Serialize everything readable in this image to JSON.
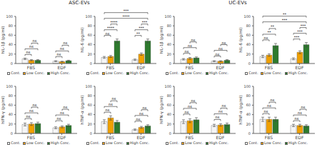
{
  "chart_data": [
    {
      "type": "bar",
      "title": "ASC-EVs",
      "ylabel": "hIL-1β (pg/ml)",
      "categories": [
        "FBS",
        "EDF"
      ],
      "ylim": [
        0,
        100
      ],
      "yticks": [
        0,
        20,
        40,
        60,
        80,
        100
      ],
      "legend": "bottom",
      "series": [
        {
          "name": "Cont.",
          "color": "#f5f5f5",
          "values": [
            10,
            5
          ],
          "errors": [
            1.5,
            1.0
          ]
        },
        {
          "name": "Low Conc.",
          "color": "#f0a000",
          "values": [
            7,
            4
          ],
          "errors": [
            1.2,
            0.8
          ]
        },
        {
          "name": "High Conc.",
          "color": "#2d7a2d",
          "values": [
            7,
            6
          ],
          "errors": [
            1.2,
            1.0
          ]
        }
      ],
      "annotations": [
        {
          "text": "ns",
          "from": [
            "FBS",
            "Cont."
          ],
          "to": [
            "FBS",
            "Low Conc."
          ],
          "level": 0
        },
        {
          "text": "ns",
          "from": [
            "FBS",
            "Cont."
          ],
          "to": [
            "FBS",
            "High Conc."
          ],
          "level": 1
        },
        {
          "text": "ns",
          "from": [
            "FBS",
            "Low Conc."
          ],
          "to": [
            "FBS",
            "High Conc."
          ],
          "level": 2
        },
        {
          "text": "ns",
          "from": [
            "EDF",
            "Cont."
          ],
          "to": [
            "EDF",
            "Low Conc."
          ],
          "level": 0
        },
        {
          "text": "ns",
          "from": [
            "EDF",
            "Cont."
          ],
          "to": [
            "EDF",
            "High Conc."
          ],
          "level": 1
        },
        {
          "text": "ns",
          "from": [
            "EDF",
            "Low Conc."
          ],
          "to": [
            "EDF",
            "High Conc."
          ],
          "level": 2
        }
      ]
    },
    {
      "type": "bar",
      "ylabel": "hIL-6 (pg/ml)",
      "categories": [
        "FBS",
        "EDF"
      ],
      "ylim": [
        0,
        100
      ],
      "yticks": [
        0,
        20,
        40,
        60,
        80,
        100
      ],
      "legend": "bottom",
      "series": [
        {
          "name": "Cont.",
          "color": "#f5f5f5",
          "values": [
            13,
            8
          ],
          "errors": [
            2.0,
            1.5
          ]
        },
        {
          "name": "Low Conc.",
          "color": "#f0a000",
          "values": [
            15,
            20
          ],
          "errors": [
            2.0,
            2.5
          ]
        },
        {
          "name": "High Conc.",
          "color": "#2d7a2d",
          "values": [
            48,
            48
          ],
          "errors": [
            4.0,
            4.0
          ]
        }
      ],
      "annotations": [
        {
          "text": "ns",
          "from": [
            "FBS",
            "Cont."
          ],
          "to": [
            "FBS",
            "Low Conc."
          ],
          "level": 0
        },
        {
          "text": "****",
          "from": [
            "FBS",
            "Cont."
          ],
          "to": [
            "FBS",
            "High Conc."
          ],
          "level": 1
        },
        {
          "text": "****",
          "from": [
            "FBS",
            "Low Conc."
          ],
          "to": [
            "FBS",
            "High Conc."
          ],
          "level": 2
        },
        {
          "text": "**",
          "from": [
            "EDF",
            "Cont."
          ],
          "to": [
            "EDF",
            "Low Conc."
          ],
          "level": 0
        },
        {
          "text": "***",
          "from": [
            "EDF",
            "Cont."
          ],
          "to": [
            "EDF",
            "High Conc."
          ],
          "level": 1
        },
        {
          "text": "***",
          "from": [
            "EDF",
            "Low Conc."
          ],
          "to": [
            "EDF",
            "High Conc."
          ],
          "level": 2
        },
        {
          "text": "****",
          "from": [
            "FBS",
            "Cont."
          ],
          "to": [
            "EDF",
            "High Conc."
          ],
          "level": 0
        },
        {
          "text": "***",
          "from": [
            "FBS",
            "Cont."
          ],
          "to": [
            "EDF",
            "High Conc."
          ],
          "level": 1
        }
      ]
    },
    {
      "type": "bar",
      "ylabel": "hIFN-γ (pg/ml)",
      "categories": [
        "FBS",
        "EDF"
      ],
      "ylim": [
        0,
        100
      ],
      "yticks": [
        0,
        20,
        40,
        60,
        80,
        100
      ],
      "legend": "bottom",
      "series": [
        {
          "name": "Cont.",
          "color": "#f5f5f5",
          "values": [
            19,
            12
          ],
          "errors": [
            3.0,
            2.0
          ]
        },
        {
          "name": "Low Conc.",
          "color": "#f0a000",
          "values": [
            20,
            14
          ],
          "errors": [
            3.0,
            2.0
          ]
        },
        {
          "name": "High Conc.",
          "color": "#2d7a2d",
          "values": [
            21,
            17
          ],
          "errors": [
            3.0,
            2.5
          ]
        }
      ],
      "annotations": [
        {
          "text": "ns",
          "from": [
            "FBS",
            "Cont."
          ],
          "to": [
            "FBS",
            "Low Conc."
          ],
          "level": 0
        },
        {
          "text": "ns",
          "from": [
            "FBS",
            "Cont."
          ],
          "to": [
            "FBS",
            "High Conc."
          ],
          "level": 1
        },
        {
          "text": "ns",
          "from": [
            "FBS",
            "Low Conc."
          ],
          "to": [
            "FBS",
            "High Conc."
          ],
          "level": 2
        },
        {
          "text": "ns",
          "from": [
            "EDF",
            "Cont."
          ],
          "to": [
            "EDF",
            "Low Conc."
          ],
          "level": 0
        },
        {
          "text": "ns",
          "from": [
            "EDF",
            "Cont."
          ],
          "to": [
            "EDF",
            "High Conc."
          ],
          "level": 1
        },
        {
          "text": "ns",
          "from": [
            "EDF",
            "Low Conc."
          ],
          "to": [
            "EDF",
            "High Conc."
          ],
          "level": 2
        }
      ]
    },
    {
      "type": "bar",
      "ylabel": "hTNF-α (pg/ml)",
      "categories": [
        "FBS",
        "EDF"
      ],
      "ylim": [
        0,
        100
      ],
      "yticks": [
        0,
        20,
        40,
        60,
        80,
        100
      ],
      "legend": "bottom",
      "series": [
        {
          "name": "Cont.",
          "color": "#f5f5f5",
          "values": [
            25,
            8
          ],
          "errors": [
            4.0,
            1.5
          ]
        },
        {
          "name": "Low Conc.",
          "color": "#f0a000",
          "values": [
            33,
            13
          ],
          "errors": [
            4.5,
            2.0
          ]
        },
        {
          "name": "High Conc.",
          "color": "#2d7a2d",
          "values": [
            24,
            16
          ],
          "errors": [
            3.5,
            2.5
          ]
        }
      ],
      "annotations": [
        {
          "text": "ns",
          "from": [
            "FBS",
            "Cont."
          ],
          "to": [
            "FBS",
            "Low Conc."
          ],
          "level": 0
        },
        {
          "text": "ns",
          "from": [
            "FBS",
            "Cont."
          ],
          "to": [
            "FBS",
            "High Conc."
          ],
          "level": 1
        },
        {
          "text": "ns",
          "from": [
            "FBS",
            "Low Conc."
          ],
          "to": [
            "FBS",
            "High Conc."
          ],
          "level": 2
        },
        {
          "text": "ns",
          "from": [
            "EDF",
            "Cont."
          ],
          "to": [
            "EDF",
            "Low Conc."
          ],
          "level": 0
        },
        {
          "text": "ns",
          "from": [
            "EDF",
            "Cont."
          ],
          "to": [
            "EDF",
            "High Conc."
          ],
          "level": 1
        },
        {
          "text": "ns",
          "from": [
            "EDF",
            "Low Conc."
          ],
          "to": [
            "EDF",
            "High Conc."
          ],
          "level": 2
        }
      ]
    },
    {
      "type": "bar",
      "title": "UC-EVs",
      "ylabel": "hIL-1β (pg/ml)",
      "categories": [
        "FBS",
        "EDF"
      ],
      "ylim": [
        0,
        100
      ],
      "yticks": [
        0,
        20,
        40,
        60,
        80,
        100
      ],
      "legend": "bottom",
      "series": [
        {
          "name": "Cont.",
          "color": "#f5f5f5",
          "values": [
            9,
            5
          ],
          "errors": [
            1.5,
            1.0
          ]
        },
        {
          "name": "Low Conc.",
          "color": "#f0a000",
          "values": [
            11,
            5
          ],
          "errors": [
            1.8,
            1.0
          ]
        },
        {
          "name": "High Conc.",
          "color": "#2d7a2d",
          "values": [
            12,
            7
          ],
          "errors": [
            2.0,
            1.2
          ]
        }
      ],
      "annotations": [
        {
          "text": "ns",
          "from": [
            "FBS",
            "Cont."
          ],
          "to": [
            "FBS",
            "Low Conc."
          ],
          "level": 0
        },
        {
          "text": "ns",
          "from": [
            "FBS",
            "Cont."
          ],
          "to": [
            "FBS",
            "High Conc."
          ],
          "level": 1
        },
        {
          "text": "ns",
          "from": [
            "FBS",
            "Low Conc."
          ],
          "to": [
            "FBS",
            "High Conc."
          ],
          "level": 2
        },
        {
          "text": "ns",
          "from": [
            "EDF",
            "Cont."
          ],
          "to": [
            "EDF",
            "Low Conc."
          ],
          "level": 0
        },
        {
          "text": "ns",
          "from": [
            "EDF",
            "Cont."
          ],
          "to": [
            "EDF",
            "High Conc."
          ],
          "level": 1
        },
        {
          "text": "ns",
          "from": [
            "EDF",
            "Low Conc."
          ],
          "to": [
            "EDF",
            "High Conc."
          ],
          "level": 2
        }
      ]
    },
    {
      "type": "bar",
      "ylabel": "hIL-6 (pg/ml)",
      "categories": [
        "FBS",
        "EDF"
      ],
      "ylim": [
        0,
        100
      ],
      "yticks": [
        0,
        20,
        40,
        60,
        80,
        100
      ],
      "legend": "bottom",
      "series": [
        {
          "name": "Cont.",
          "color": "#f5f5f5",
          "values": [
            15,
            10
          ],
          "errors": [
            2.5,
            2.0
          ]
        },
        {
          "name": "Low Conc.",
          "color": "#f0a000",
          "values": [
            18,
            24
          ],
          "errors": [
            2.5,
            3.0
          ]
        },
        {
          "name": "High Conc.",
          "color": "#2d7a2d",
          "values": [
            38,
            40
          ],
          "errors": [
            4.5,
            4.5
          ]
        }
      ],
      "annotations": [
        {
          "text": "ns",
          "from": [
            "FBS",
            "Cont."
          ],
          "to": [
            "FBS",
            "Low Conc."
          ],
          "level": 0
        },
        {
          "text": "**",
          "from": [
            "FBS",
            "Cont."
          ],
          "to": [
            "FBS",
            "High Conc."
          ],
          "level": 1
        },
        {
          "text": "**",
          "from": [
            "FBS",
            "Low Conc."
          ],
          "to": [
            "FBS",
            "High Conc."
          ],
          "level": 2
        },
        {
          "text": "***",
          "from": [
            "EDF",
            "Cont."
          ],
          "to": [
            "EDF",
            "Low Conc."
          ],
          "level": 0
        },
        {
          "text": "***",
          "from": [
            "EDF",
            "Cont."
          ],
          "to": [
            "EDF",
            "High Conc."
          ],
          "level": 1
        },
        {
          "text": "***",
          "from": [
            "EDF",
            "Low Conc."
          ],
          "to": [
            "EDF",
            "High Conc."
          ],
          "level": 2
        },
        {
          "text": "***",
          "from": [
            "FBS",
            "Cont."
          ],
          "to": [
            "EDF",
            "High Conc."
          ],
          "level": 0
        },
        {
          "text": "**",
          "from": [
            "FBS",
            "Cont."
          ],
          "to": [
            "EDF",
            "High Conc."
          ],
          "level": 1
        }
      ]
    },
    {
      "type": "bar",
      "ylabel": "hIFN-γ (pg/ml)",
      "categories": [
        "FBS",
        "EDF"
      ],
      "ylim": [
        0,
        100
      ],
      "yticks": [
        0,
        20,
        40,
        60,
        80,
        100
      ],
      "legend": "bottom",
      "series": [
        {
          "name": "Cont.",
          "color": "#f5f5f5",
          "values": [
            25,
            17
          ],
          "errors": [
            4.0,
            2.5
          ]
        },
        {
          "name": "Low Conc.",
          "color": "#f0a000",
          "values": [
            27,
            18
          ],
          "errors": [
            4.0,
            2.5
          ]
        },
        {
          "name": "High Conc.",
          "color": "#2d7a2d",
          "values": [
            29,
            19
          ],
          "errors": [
            4.5,
            3.0
          ]
        }
      ],
      "annotations": [
        {
          "text": "ns",
          "from": [
            "FBS",
            "Cont."
          ],
          "to": [
            "FBS",
            "Low Conc."
          ],
          "level": 0
        },
        {
          "text": "ns",
          "from": [
            "FBS",
            "Cont."
          ],
          "to": [
            "FBS",
            "High Conc."
          ],
          "level": 1
        },
        {
          "text": "ns",
          "from": [
            "FBS",
            "Low Conc."
          ],
          "to": [
            "FBS",
            "High Conc."
          ],
          "level": 2
        },
        {
          "text": "ns",
          "from": [
            "EDF",
            "Cont."
          ],
          "to": [
            "EDF",
            "Low Conc."
          ],
          "level": 0
        },
        {
          "text": "ns",
          "from": [
            "EDF",
            "Cont."
          ],
          "to": [
            "EDF",
            "High Conc."
          ],
          "level": 1
        },
        {
          "text": "ns",
          "from": [
            "EDF",
            "Low Conc."
          ],
          "to": [
            "EDF",
            "High Conc."
          ],
          "level": 2
        }
      ]
    },
    {
      "type": "bar",
      "ylabel": "hTNF-α (pg/ml)",
      "categories": [
        "FBS",
        "EDF"
      ],
      "ylim": [
        0,
        100
      ],
      "yticks": [
        0,
        20,
        40,
        60,
        80,
        100
      ],
      "legend": "bottom",
      "series": [
        {
          "name": "Cont.",
          "color": "#f5f5f5",
          "values": [
            30,
            17
          ],
          "errors": [
            4.5,
            2.5
          ]
        },
        {
          "name": "Low Conc.",
          "color": "#f0a000",
          "values": [
            30,
            17
          ],
          "errors": [
            4.5,
            2.5
          ]
        },
        {
          "name": "High Conc.",
          "color": "#2d7a2d",
          "values": [
            30,
            16
          ],
          "errors": [
            4.5,
            2.5
          ]
        }
      ],
      "annotations": [
        {
          "text": "ns",
          "from": [
            "FBS",
            "Cont."
          ],
          "to": [
            "FBS",
            "Low Conc."
          ],
          "level": 0
        },
        {
          "text": "ns",
          "from": [
            "FBS",
            "Cont."
          ],
          "to": [
            "FBS",
            "High Conc."
          ],
          "level": 1
        },
        {
          "text": "ns",
          "from": [
            "FBS",
            "Low Conc."
          ],
          "to": [
            "FBS",
            "High Conc."
          ],
          "level": 2
        },
        {
          "text": "ns",
          "from": [
            "EDF",
            "Cont."
          ],
          "to": [
            "EDF",
            "Low Conc."
          ],
          "level": 0
        },
        {
          "text": "ns",
          "from": [
            "EDF",
            "Cont."
          ],
          "to": [
            "EDF",
            "High Conc."
          ],
          "level": 1
        },
        {
          "text": "ns",
          "from": [
            "EDF",
            "Low Conc."
          ],
          "to": [
            "EDF",
            "High Conc."
          ],
          "level": 2
        }
      ]
    }
  ]
}
